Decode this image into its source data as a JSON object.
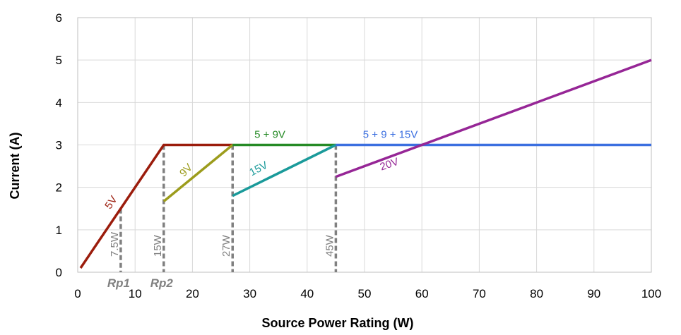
{
  "chart_data": {
    "type": "line",
    "xlabel": "Source Power Rating (W)",
    "ylabel": "Current (A)",
    "xlim": [
      0,
      100
    ],
    "ylim": [
      0,
      6
    ],
    "xticks": [
      "0",
      "10",
      "20",
      "30",
      "40",
      "50",
      "60",
      "70",
      "80",
      "90",
      "100"
    ],
    "yticks": [
      "0",
      "1",
      "2",
      "3",
      "4",
      "5",
      "6"
    ],
    "grid": true,
    "colors": {
      "5V": "#9B1C0C",
      "9V": "#9C9C1C",
      "5+9V": "#258A25",
      "15V": "#1A9A9A",
      "5+9+15V": "#3B6FE0",
      "20V": "#962696",
      "power": "#808080"
    },
    "series": [
      {
        "name": "5V",
        "color_key": "5V",
        "x": [
          0.5,
          15,
          27
        ],
        "y": [
          0.1,
          3,
          3
        ]
      },
      {
        "name": "9V",
        "color_key": "9V",
        "x": [
          15,
          27
        ],
        "y": [
          1.67,
          3
        ]
      },
      {
        "name": "5 + 9V",
        "color_key": "5+9V",
        "x": [
          27,
          45
        ],
        "y": [
          3,
          3
        ]
      },
      {
        "name": "15V",
        "color_key": "15V",
        "x": [
          27,
          45
        ],
        "y": [
          1.8,
          3
        ]
      },
      {
        "name": "5 + 9 + 15V",
        "color_key": "5+9+15V",
        "x": [
          45,
          100
        ],
        "y": [
          3,
          3
        ]
      },
      {
        "name": "20V",
        "color_key": "20V",
        "x": [
          45,
          100
        ],
        "y": [
          2.25,
          5
        ]
      }
    ],
    "series_labels": [
      {
        "text": "5V",
        "color_key": "5V",
        "x": 6.3,
        "y": 1.6,
        "angle": -56
      },
      {
        "text": "9V",
        "color_key": "9V",
        "x": 19.3,
        "y": 2.35,
        "angle": -46
      },
      {
        "text": "5 + 9V",
        "color_key": "5+9V",
        "x": 33.5,
        "y": 3.17,
        "angle": 0
      },
      {
        "text": "15V",
        "color_key": "15V",
        "x": 31.8,
        "y": 2.37,
        "angle": -28
      },
      {
        "text": "5 + 9 + 15V",
        "color_key": "5+9+15V",
        "x": 54.5,
        "y": 3.17,
        "angle": 0
      },
      {
        "text": "20V",
        "color_key": "20V",
        "x": 54.5,
        "y": 2.47,
        "angle": -19
      }
    ],
    "power_marks": [
      {
        "x": 7.5,
        "y_top": 1.5,
        "label": "7.5W",
        "tag": "Rp1"
      },
      {
        "x": 15,
        "y_top": 3,
        "label": "15W",
        "tag": "Rp2"
      },
      {
        "x": 27,
        "y_top": 3,
        "label": "27W",
        "tag": ""
      },
      {
        "x": 45,
        "y_top": 3,
        "label": "45W",
        "tag": ""
      }
    ]
  }
}
